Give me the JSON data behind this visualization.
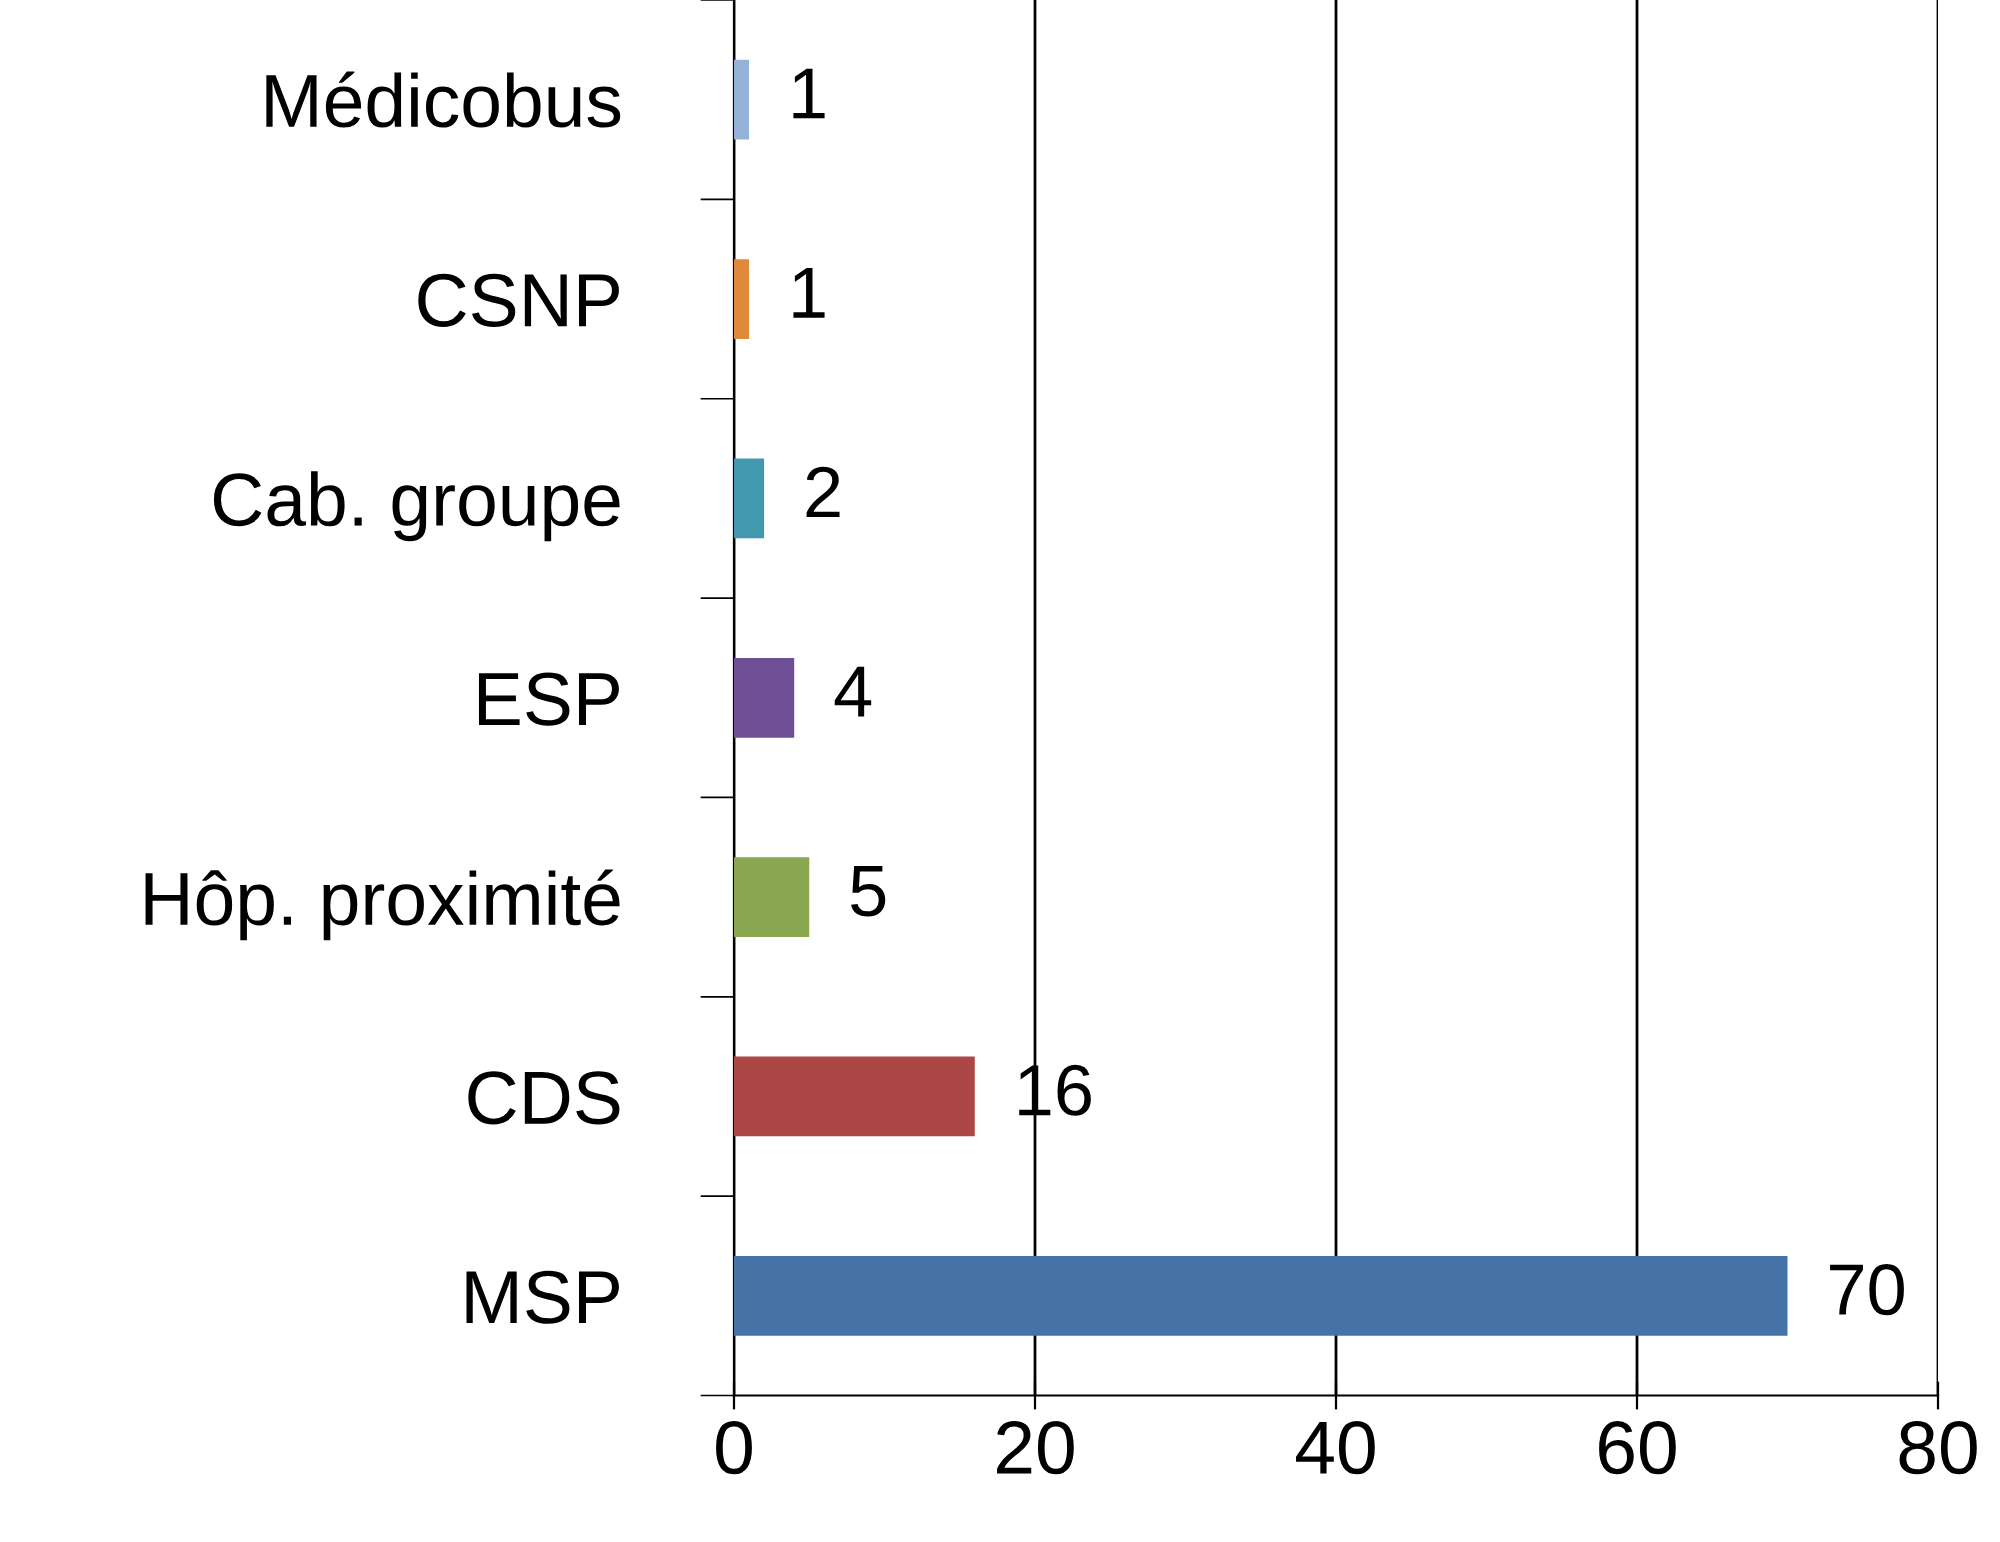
{
  "chart_data": {
    "type": "bar",
    "orientation": "horizontal",
    "categories": [
      "Médicobus",
      "CSNP",
      "Cab. groupe",
      "ESP",
      "Hôp. proximité",
      "CDS",
      "MSP"
    ],
    "values": [
      1,
      1,
      2,
      4,
      5,
      16,
      70
    ],
    "colors": [
      "#95b3d7",
      "#e0893a",
      "#4198af",
      "#6f4f96",
      "#8aa64e",
      "#ab4744",
      "#4573a7"
    ],
    "xlim": [
      0,
      80
    ],
    "xticks": [
      0,
      20,
      40,
      60,
      80
    ],
    "grid": "x",
    "data_labels": true,
    "legend": false
  }
}
